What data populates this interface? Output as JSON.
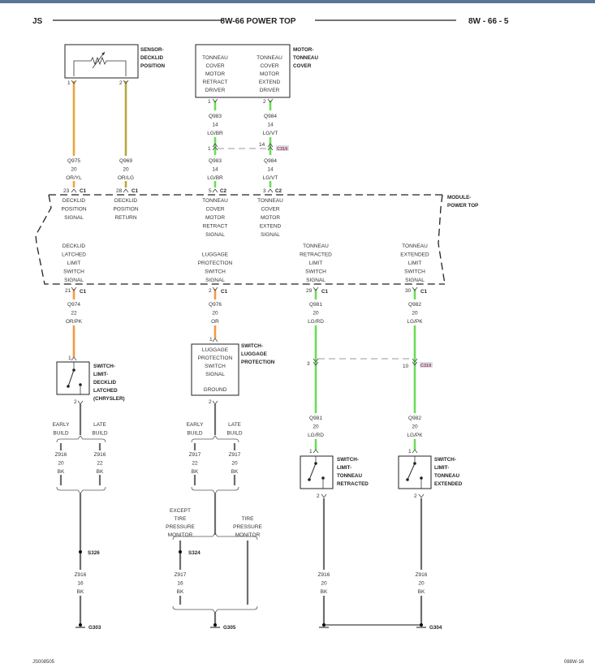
{
  "header": {
    "left": "JS",
    "title": "8W-66 POWER TOP",
    "page": "8W - 66 - 5"
  },
  "colors": {
    "OR": "#f29a45",
    "OR_YL": "#eaa640",
    "OR_LG": "#b8a83c",
    "LG": "#6cdc58",
    "BK": "#6e6e6e",
    "module_border": "#222222",
    "connector_badge": "#c0302a"
  },
  "sensor": {
    "name_lines": [
      "SENSOR-",
      "DECKLID",
      "POSITION"
    ],
    "icon": "variable-resistor-icon"
  },
  "motor": {
    "name_lines": [
      "MOTOR-",
      "TONNEAU",
      "COVER"
    ],
    "left_lines": [
      "TONNEAU",
      "COVER",
      "MOTOR",
      "RETRACT",
      "DRIVER"
    ],
    "right_lines": [
      "TONNEAU",
      "COVER",
      "MOTOR",
      "EXTEND",
      "DRIVER"
    ]
  },
  "module": {
    "name_lines": [
      "MODULE-",
      "POWER TOP"
    ],
    "signals": [
      [
        "DECKLID",
        "POSITION",
        "SIGNAL"
      ],
      [
        "DECKLID",
        "POSITION",
        "RETURN"
      ],
      [
        "TONNEAU",
        "COVER",
        "MOTOR",
        "RETRACT",
        "SIGNAL"
      ],
      [
        "TONNEAU",
        "COVER",
        "MOTOR",
        "EXTEND",
        "SIGNAL"
      ],
      [
        "DECKLID",
        "LATCHED",
        "LIMIT",
        "SWITCH",
        "SIGNAL"
      ],
      [
        "LUGGAGE",
        "PROTECTION",
        "SWITCH",
        "SIGNAL"
      ],
      [
        "TONNEAU",
        "RETRACTED",
        "LIMIT",
        "SWITCH",
        "SIGNAL"
      ],
      [
        "TONNEAU",
        "EXTENDED",
        "LIMIT",
        "SWITCH",
        "SIGNAL"
      ]
    ]
  },
  "switches": {
    "decklid": {
      "name_lines": [
        "SWITCH-",
        "LIMIT-",
        "DECKLID",
        "LATCHED",
        "(CHRYSLER)"
      ]
    },
    "luggage": {
      "name_lines": [
        "SWITCH-",
        "LUGGAGE",
        "PROTECTION"
      ],
      "inner_lines": [
        "LUGGAGE",
        "PROTECTION",
        "SWITCH",
        "SIGNAL"
      ],
      "ground": "GROUND"
    },
    "retracted": {
      "name_lines": [
        "SWITCH-",
        "LIMIT-",
        "TONNEAU",
        "RETRACTED"
      ]
    },
    "extended": {
      "name_lines": [
        "SWITCH-",
        "LIMIT-",
        "TONNEAU",
        "EXTENDED"
      ]
    }
  },
  "wires": [
    [
      "Q975",
      "20",
      "OR/YL"
    ],
    [
      "Q969",
      "20",
      "OR/LG"
    ],
    [
      "Q983",
      "14",
      "LG/BR"
    ],
    [
      "Q984",
      "14",
      "LG/VT"
    ],
    [
      "Q983",
      "14",
      "LG/BR"
    ],
    [
      "Q984",
      "14",
      "LG/VT"
    ],
    [
      "Q974",
      "22",
      "OR/PK"
    ],
    [
      "Q976",
      "20",
      "OR"
    ],
    [
      "Q981",
      "20",
      "LG/RD"
    ],
    [
      "Q982",
      "20",
      "LG/PK"
    ],
    [
      "Q981",
      "20",
      "LG/RD"
    ],
    [
      "Q982",
      "20",
      "LG/PK"
    ],
    [
      "Z916",
      "20",
      "BK"
    ],
    [
      "Z916",
      "22",
      "BK"
    ],
    [
      "Z917",
      "22",
      "BK"
    ],
    [
      "Z917",
      "20",
      "BK"
    ],
    [
      "Z916",
      "16",
      "BK"
    ],
    [
      "Z917",
      "16",
      "BK"
    ],
    [
      "Z916",
      "20",
      "BK"
    ],
    [
      "Z916",
      "20",
      "BK"
    ]
  ],
  "pins": [
    "1",
    "2",
    "1",
    "2",
    "1",
    "14",
    "23",
    "28",
    "5",
    "3",
    "21",
    "2",
    "29",
    "30",
    "1",
    "1",
    "3",
    "10",
    "2",
    "2",
    "1",
    "1",
    "2",
    "2"
  ],
  "connectors": {
    "c1": "C1",
    "c2": "C2",
    "c319": "C319"
  },
  "options": {
    "early": [
      "EARLY",
      "BUILD"
    ],
    "late": [
      "LATE",
      "BUILD"
    ],
    "except_tpm": [
      "EXCEPT",
      "TIRE",
      "PRESSURE",
      "MONITOR"
    ],
    "tpm": [
      "TIRE",
      "PRESSURE",
      "MONITOR"
    ]
  },
  "splices": [
    "S326",
    "S324"
  ],
  "grounds": [
    "G303",
    "G305",
    "G304"
  ],
  "footer": {
    "left": "JS008505",
    "right": "088W-16"
  }
}
